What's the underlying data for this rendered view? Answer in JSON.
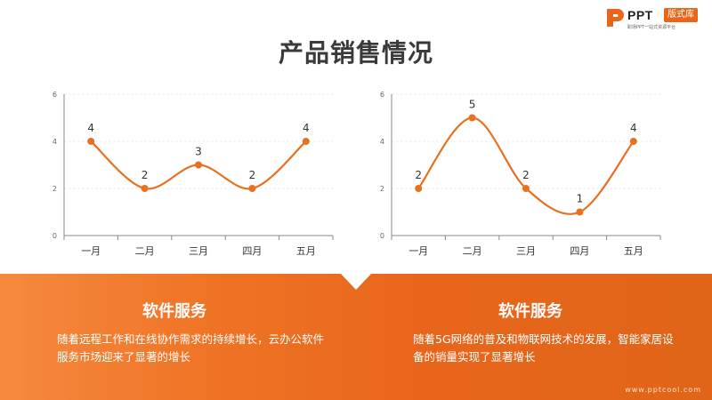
{
  "logo": {
    "text": "PPT",
    "badge": "版式库",
    "tagline": "职场PPT一站式资源平台",
    "mark_color": "#e8651a"
  },
  "title": "产品销售情况",
  "chart_data": [
    {
      "type": "line",
      "smooth": true,
      "categories": [
        "一月",
        "二月",
        "三月",
        "四月",
        "五月"
      ],
      "values": [
        4,
        2,
        3,
        2,
        4
      ],
      "ylim": [
        0,
        6
      ],
      "yticks": [
        "0",
        "2",
        "4",
        "6"
      ],
      "grid": true,
      "data_labels": true,
      "color": "#e8701f",
      "title": "",
      "xlabel": "",
      "ylabel": ""
    },
    {
      "type": "line",
      "smooth": true,
      "categories": [
        "一月",
        "二月",
        "三月",
        "四月",
        "五月"
      ],
      "values": [
        2,
        5,
        2,
        1,
        4
      ],
      "ylim": [
        0,
        6
      ],
      "yticks": [
        "0",
        "2",
        "4",
        "6"
      ],
      "grid": true,
      "data_labels": true,
      "color": "#e8701f",
      "title": "",
      "xlabel": "",
      "ylabel": ""
    }
  ],
  "cards": [
    {
      "title": "软件服务",
      "text": "随着远程工作和在线协作需求的持续增长，云办公软件服务市场迎来了显著的增长"
    },
    {
      "title": "软件服务",
      "text": "随着5G网络的普及和物联网技术的发展，智能家居设备的销量实现了显著增长"
    }
  ],
  "footer_url": "www.pptcool.com",
  "colors": {
    "accent": "#e8701f",
    "band_start": "#f58a3e",
    "band_end": "#e06518",
    "title": "#3a3a3a"
  }
}
